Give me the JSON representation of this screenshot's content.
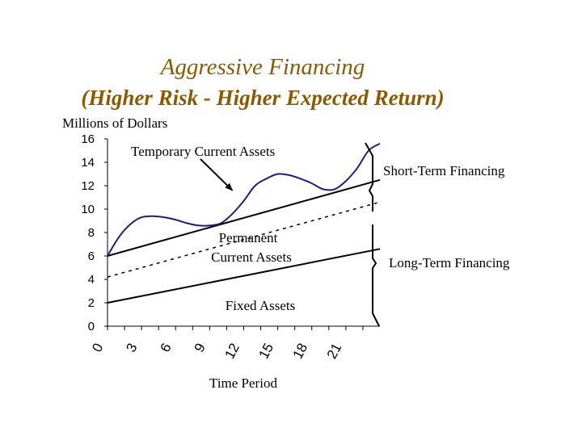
{
  "slide": {
    "title": "Aggressive Financing",
    "subtitle": "(Higher Risk - Higher Expected Return)"
  },
  "chart_data": {
    "type": "line",
    "ylabel": "Millions of Dollars",
    "xlabel": "Time Period",
    "ylim": [
      0,
      16
    ],
    "yticks": [
      0,
      2,
      4,
      6,
      8,
      10,
      12,
      14,
      16
    ],
    "xlim": [
      0,
      24
    ],
    "xticks": [
      0,
      3,
      6,
      9,
      12,
      15,
      18,
      21
    ],
    "grid": false,
    "series": [
      {
        "name": "Fixed Assets",
        "x": [
          0,
          24
        ],
        "y": [
          2.0,
          6.6
        ]
      },
      {
        "name": "Permanent Current Assets",
        "x": [
          0,
          24
        ],
        "y": [
          6.0,
          12.5
        ]
      },
      {
        "name": "Temporary Current Assets",
        "x": [
          0,
          1,
          2,
          3,
          4,
          5,
          6,
          7,
          8,
          9,
          10,
          11,
          12,
          13,
          14,
          15,
          16,
          17,
          18,
          19,
          20,
          21,
          22,
          23,
          24
        ],
        "y": [
          6.0,
          7.6,
          8.7,
          9.3,
          9.4,
          9.3,
          9.1,
          8.8,
          8.6,
          8.6,
          8.8,
          9.6,
          10.7,
          12.0,
          12.6,
          13.0,
          12.9,
          12.6,
          12.2,
          11.7,
          11.7,
          12.4,
          13.5,
          15.0,
          15.6
        ]
      },
      {
        "name": "Financing boundary",
        "x": [
          0,
          24
        ],
        "y": [
          4.2,
          10.6
        ]
      }
    ],
    "annotations": [
      {
        "text": "Temporary Current Assets",
        "points_to": {
          "x": 11,
          "y": 11.6
        }
      },
      {
        "text": "Permanent"
      },
      {
        "text": "Current Assets"
      },
      {
        "text": "Fixed Assets"
      },
      {
        "text": "Short-Term Financing"
      },
      {
        "text": "Long-Term Financing"
      }
    ]
  },
  "colors": {
    "title": "#8B5A00",
    "temporary_curve": "#1E1E78",
    "lines": "#000000"
  }
}
